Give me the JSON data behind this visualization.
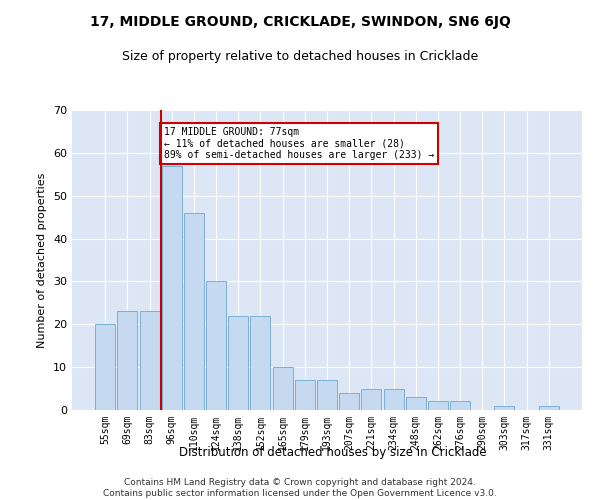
{
  "title": "17, MIDDLE GROUND, CRICKLADE, SWINDON, SN6 6JQ",
  "subtitle": "Size of property relative to detached houses in Cricklade",
  "xlabel": "Distribution of detached houses by size in Cricklade",
  "ylabel": "Number of detached properties",
  "categories": [
    "55sqm",
    "69sqm",
    "83sqm",
    "96sqm",
    "110sqm",
    "124sqm",
    "138sqm",
    "152sqm",
    "165sqm",
    "179sqm",
    "193sqm",
    "207sqm",
    "221sqm",
    "234sqm",
    "248sqm",
    "262sqm",
    "276sqm",
    "290sqm",
    "303sqm",
    "317sqm",
    "331sqm"
  ],
  "values": [
    20,
    23,
    23,
    57,
    46,
    30,
    22,
    22,
    10,
    7,
    7,
    4,
    5,
    5,
    3,
    2,
    2,
    0,
    1,
    0,
    1
  ],
  "bar_color": "#c5d9f0",
  "bar_edge_color": "#7bafd4",
  "background_color": "#dce6f5",
  "grid_color": "#ffffff",
  "vline_x_index": 2.5,
  "vline_color": "#cc0000",
  "annotation_text": "17 MIDDLE GROUND: 77sqm\n← 11% of detached houses are smaller (28)\n89% of semi-detached houses are larger (233) →",
  "annotation_box_color": "#cc0000",
  "footer": "Contains HM Land Registry data © Crown copyright and database right 2024.\nContains public sector information licensed under the Open Government Licence v3.0.",
  "ylim": [
    0,
    70
  ],
  "yticks": [
    0,
    10,
    20,
    30,
    40,
    50,
    60,
    70
  ]
}
